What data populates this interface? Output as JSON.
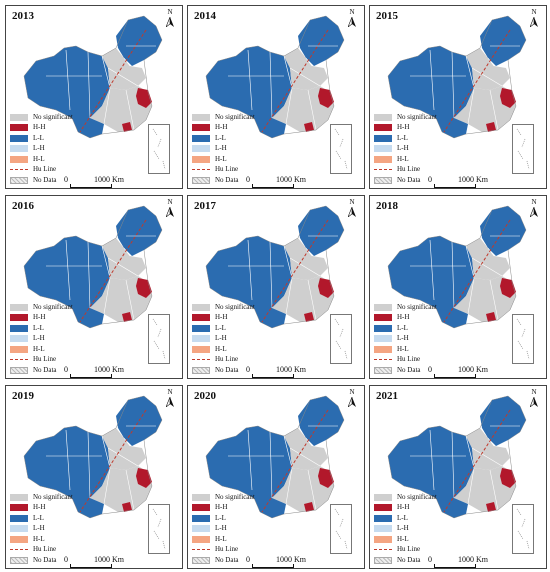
{
  "north_label": "N",
  "legend": {
    "no_significant": "No significant",
    "hh": "H-H",
    "ll": "L-L",
    "lh": "L-H",
    "hl": "H-L",
    "hu_line": "Hu Line",
    "no_data": "No Data"
  },
  "scale": {
    "zero": "0",
    "distance": "1000",
    "unit": "Km"
  },
  "colors": {
    "no_significant": "#cfcfcf",
    "hh": "#b2182b",
    "ll": "#2b6cb0",
    "lh": "#c6dbef",
    "hl": "#f4a582",
    "hu_line": "#c0392b",
    "border": "#ffffff"
  },
  "panels": [
    {
      "year": "2013"
    },
    {
      "year": "2014"
    },
    {
      "year": "2015"
    },
    {
      "year": "2016"
    },
    {
      "year": "2017"
    },
    {
      "year": "2018"
    },
    {
      "year": "2019"
    },
    {
      "year": "2020"
    },
    {
      "year": "2021"
    }
  ]
}
